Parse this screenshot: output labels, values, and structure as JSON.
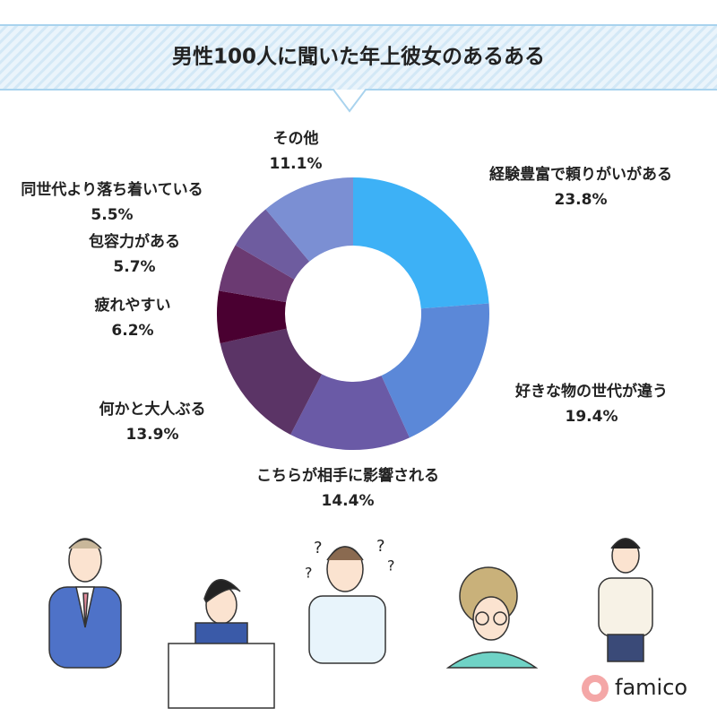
{
  "chart_data": {
    "type": "donut",
    "title": "男性100人に聞いた年上彼女のあるある",
    "categories": [
      "経験豊富で頼りがいがある",
      "好きな物の世代が違う",
      "こちらが相手に影響される",
      "何かと大人ぶる",
      "疲れやすい",
      "包容力がある",
      "同世代より落ち着いている",
      "その他"
    ],
    "values": [
      23.8,
      19.4,
      14.4,
      13.9,
      6.2,
      5.7,
      5.5,
      11.1
    ],
    "value_labels": [
      "23.8%",
      "19.4%",
      "14.4%",
      "13.9%",
      "6.2%",
      "5.7%",
      "5.5%",
      "11.1%"
    ],
    "colors": [
      "#3db1f6",
      "#5b88d8",
      "#6a5aa6",
      "#5b3466",
      "#4a0031",
      "#6b3a72",
      "#6e5c9f",
      "#7b8fd3"
    ]
  },
  "brand": "famico"
}
